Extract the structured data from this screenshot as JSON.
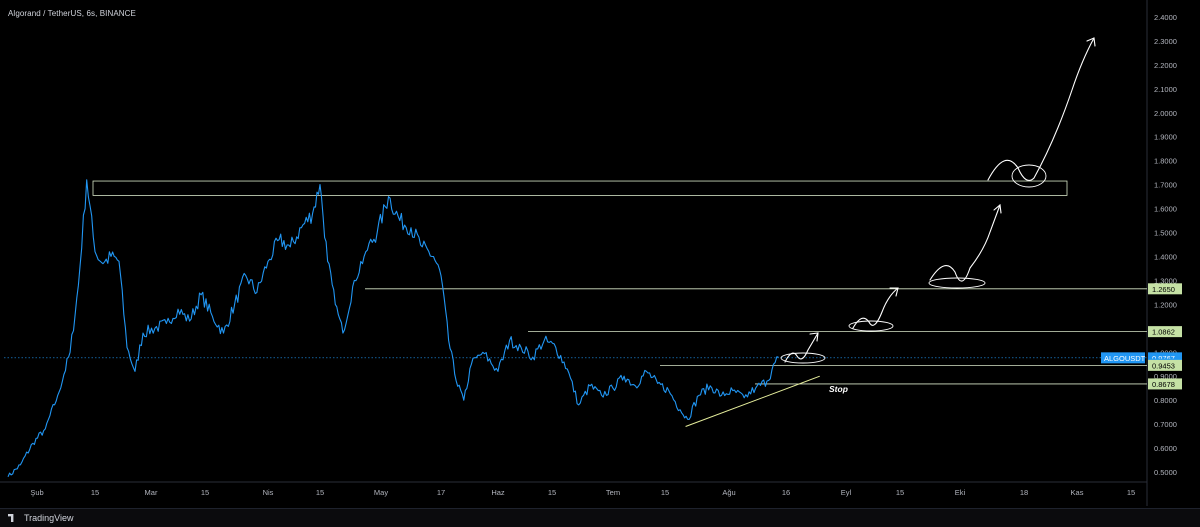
{
  "header": {
    "title": "Algorand / TetherUS, 6s, BINANCE"
  },
  "footer": {
    "brand": "TradingView"
  },
  "colors": {
    "background": "#000000",
    "price_line": "#2196f3",
    "zone_line": "#d8e6c8",
    "arrow": "#ffffff",
    "level_tag_bg": "#c5e1a5",
    "current_tag_bg": "#2196f3"
  },
  "annotations": {
    "stop_label": "Stop"
  },
  "chart_data": {
    "type": "line",
    "title": "",
    "xlabel": "",
    "ylabel": "",
    "ylim": [
      0.46,
      2.42
    ],
    "x_ticks": [
      "Şub",
      "15",
      "Mar",
      "15",
      "Nis",
      "15",
      "May",
      "17",
      "Haz",
      "15",
      "Tem",
      "15",
      "Ağu",
      "16",
      "Eyl",
      "15",
      "Eki",
      "18",
      "Kas",
      "15"
    ],
    "y_ticks": [
      "2.4000",
      "2.3000",
      "2.2000",
      "2.1000",
      "2.0000",
      "1.9000",
      "1.8000",
      "1.7000",
      "1.6000",
      "1.5000",
      "1.4000",
      "1.3000",
      "1.2000",
      "1.1000",
      "1.0000",
      "0.9000",
      "0.8000",
      "0.7000",
      "0.6000",
      "0.5000"
    ],
    "series": [
      {
        "name": "ALGOUSDT",
        "points": [
          [
            "Jan 25",
            0.48
          ],
          [
            "Jan 28",
            0.53
          ],
          [
            "Jan 31",
            0.62
          ],
          [
            "Feb 3",
            0.68
          ],
          [
            "Feb 6",
            0.82
          ],
          [
            "Feb 9",
            1.0
          ],
          [
            "Feb 11",
            1.28
          ],
          [
            "Feb 13",
            1.72
          ],
          [
            "Feb 15",
            1.42
          ],
          [
            "Feb 17",
            1.37
          ],
          [
            "Feb 19",
            1.4
          ],
          [
            "Feb 21",
            1.38
          ],
          [
            "Feb 23",
            1.02
          ],
          [
            "Feb 25",
            0.92
          ],
          [
            "Feb 27",
            1.08
          ],
          [
            "Mar 2",
            1.1
          ],
          [
            "Mar 5",
            1.12
          ],
          [
            "Mar 8",
            1.18
          ],
          [
            "Mar 11",
            1.13
          ],
          [
            "Mar 14",
            1.24
          ],
          [
            "Mar 17",
            1.15
          ],
          [
            "Mar 20",
            1.08
          ],
          [
            "Mar 23",
            1.2
          ],
          [
            "Mar 26",
            1.32
          ],
          [
            "Mar 29",
            1.25
          ],
          [
            "Apr 1",
            1.38
          ],
          [
            "Apr 4",
            1.47
          ],
          [
            "Apr 7",
            1.44
          ],
          [
            "Apr 10",
            1.52
          ],
          [
            "Apr 13",
            1.58
          ],
          [
            "Apr 15",
            1.7
          ],
          [
            "Apr 17",
            1.38
          ],
          [
            "Apr 19",
            1.2
          ],
          [
            "Apr 21",
            1.08
          ],
          [
            "Apr 24",
            1.3
          ],
          [
            "Apr 27",
            1.42
          ],
          [
            "Apr 30",
            1.5
          ],
          [
            "May 3",
            1.65
          ],
          [
            "May 6",
            1.55
          ],
          [
            "May 9",
            1.52
          ],
          [
            "May 12",
            1.44
          ],
          [
            "May 15",
            1.4
          ],
          [
            "May 17",
            1.32
          ],
          [
            "May 19",
            1.05
          ],
          [
            "May 21",
            0.88
          ],
          [
            "May 23",
            0.8
          ],
          [
            "May 25",
            0.95
          ],
          [
            "May 28",
            1.0
          ],
          [
            "Jun 1",
            0.92
          ],
          [
            "Jun 4",
            1.05
          ],
          [
            "Jun 7",
            1.02
          ],
          [
            "Jun 10",
            0.98
          ],
          [
            "Jun 13",
            1.05
          ],
          [
            "Jun 16",
            1.02
          ],
          [
            "Jun 19",
            0.93
          ],
          [
            "Jun 22",
            0.78
          ],
          [
            "Jun 25",
            0.86
          ],
          [
            "Jun 28",
            0.82
          ],
          [
            "Jul 1",
            0.85
          ],
          [
            "Jul 4",
            0.9
          ],
          [
            "Jul 7",
            0.86
          ],
          [
            "Jul 10",
            0.92
          ],
          [
            "Jul 13",
            0.87
          ],
          [
            "Jul 16",
            0.84
          ],
          [
            "Jul 19",
            0.76
          ],
          [
            "Jul 21",
            0.72
          ],
          [
            "Jul 24",
            0.82
          ],
          [
            "Jul 27",
            0.86
          ],
          [
            "Jul 30",
            0.82
          ],
          [
            "Aug 2",
            0.84
          ],
          [
            "Aug 5",
            0.81
          ],
          [
            "Aug 8",
            0.85
          ],
          [
            "Aug 11",
            0.88
          ],
          [
            "Aug 14",
            0.98
          ]
        ]
      }
    ],
    "zones": [
      {
        "name": "resistance-zone",
        "from": 1.655,
        "to": 1.715
      },
      {
        "name": "level-1265",
        "value": 1.265
      },
      {
        "name": "level-1086",
        "value": 1.0862
      },
      {
        "name": "level-0945",
        "value": 0.9453
      },
      {
        "name": "level-0868",
        "value": 0.8678
      }
    ],
    "price_tags": [
      {
        "label": "1.2650",
        "value": 1.265,
        "kind": "level"
      },
      {
        "label": "1.0862",
        "value": 1.0862,
        "kind": "level"
      },
      {
        "label": "ALGOUSDT",
        "value": 0.9767,
        "kind": "symbol"
      },
      {
        "label": "0.9767",
        "value": 0.9767,
        "kind": "current"
      },
      {
        "label": "02:23:21",
        "value": 0.953,
        "kind": "countdown"
      },
      {
        "label": "0.9453",
        "value": 0.9453,
        "kind": "level"
      },
      {
        "label": "0.8678",
        "value": 0.8678,
        "kind": "level"
      }
    ],
    "trendline": {
      "from": [
        "Jul 21",
        0.69
      ],
      "to": [
        "Aug 25",
        0.9
      ]
    },
    "grid": false,
    "legend": "none"
  }
}
